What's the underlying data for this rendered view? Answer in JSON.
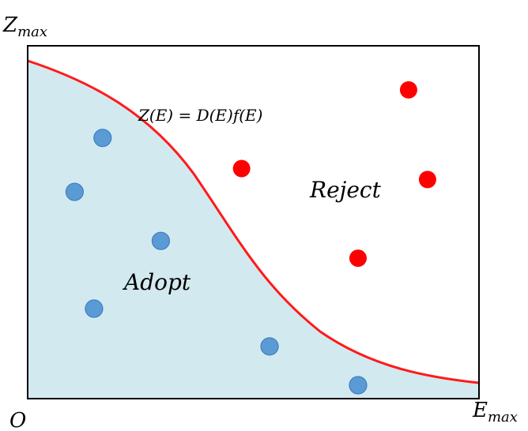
{
  "labels": {
    "z_axis": "Z",
    "z_axis_sub": "max",
    "e_axis": "E",
    "e_axis_sub": "max",
    "origin": "O",
    "curve": "Z(E) = D(E)f(E)",
    "adopt_region": "Adopt",
    "reject_region": "Reject"
  },
  "colors": {
    "adopt_fill": "#d3e9f0",
    "curve": "#ff1a1a",
    "adopt_points": "#5b9bd5",
    "adopt_point_stroke": "#3f7fbf",
    "reject_points": "#ff0000",
    "frame": "#000000"
  },
  "adopt_points": [
    {
      "e": 0.166,
      "z": 0.739
    },
    {
      "e": 0.104,
      "z": 0.586
    },
    {
      "e": 0.295,
      "z": 0.447
    },
    {
      "e": 0.147,
      "z": 0.255
    },
    {
      "e": 0.536,
      "z": 0.148
    },
    {
      "e": 0.732,
      "z": 0.038
    }
  ],
  "reject_points": [
    {
      "e": 0.844,
      "z": 0.875
    },
    {
      "e": 0.474,
      "z": 0.652
    },
    {
      "e": 0.886,
      "z": 0.621
    },
    {
      "e": 0.732,
      "z": 0.398
    }
  ]
}
